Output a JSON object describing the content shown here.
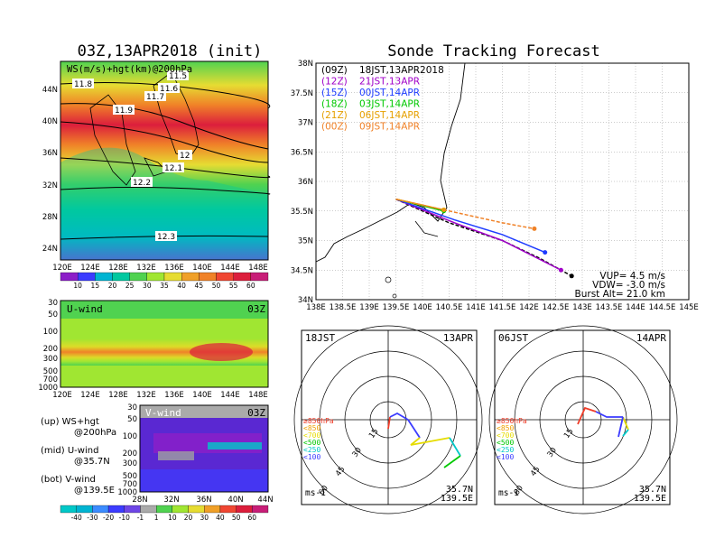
{
  "left_title": "03Z,13APR2018 (init)",
  "right_title": "Sonde Tracking Forecast",
  "map_panel": {
    "label": "WS(m/s)+hgt(km)@200hPa",
    "x_ticks": [
      "120E",
      "124E",
      "128E",
      "132E",
      "136E",
      "140E",
      "144E",
      "148E"
    ],
    "y_ticks": [
      "44N",
      "40N",
      "36N",
      "32N",
      "28N",
      "24N"
    ],
    "height_labels": [
      "11.8",
      "11.5",
      "11.6",
      "11.7",
      "11.9",
      "12",
      "12.1",
      "12.2",
      "12.3"
    ],
    "colorbar_ticks": [
      "10",
      "15",
      "20",
      "25",
      "30",
      "35",
      "40",
      "45",
      "50",
      "55",
      "60"
    ]
  },
  "uwind_panel": {
    "label": "U-wind",
    "time": "03Z",
    "y_ticks": [
      "30",
      "50",
      "100",
      "200",
      "300",
      "500",
      "700",
      "1000"
    ],
    "x_ticks": [
      "120E",
      "124E",
      "128E",
      "132E",
      "136E",
      "140E",
      "144E",
      "148E"
    ]
  },
  "vwind_panel": {
    "label": "V-wind",
    "time": "03Z",
    "y_ticks": [
      "30",
      "50",
      "100",
      "200",
      "300",
      "500",
      "700",
      "1000"
    ],
    "x_ticks": [
      "28N",
      "32N",
      "36N",
      "40N",
      "44N"
    ]
  },
  "legend_text": {
    "up_1": "(up) WS+hgt",
    "up_2": "@200hPa",
    "mid_1": "(mid) U-wind",
    "mid_2": "@35.7N",
    "bot_1": "(bot) V-wind",
    "bot_2": "@139.5E"
  },
  "bottom_colorbar_ticks": [
    "-40",
    "-30",
    "-20",
    "-10",
    "-1",
    "1",
    "10",
    "20",
    "30",
    "40",
    "50",
    "60"
  ],
  "track_panel": {
    "lat_ticks": [
      "38N",
      "37.5N",
      "37N",
      "36.5N",
      "36N",
      "35.5N",
      "35N",
      "34.5N",
      "34N"
    ],
    "lon_ticks": [
      "138E",
      "138.5E",
      "139E",
      "139.5E",
      "140E",
      "140.5E",
      "141E",
      "141.5E",
      "142E",
      "142.5E",
      "143E",
      "143.5E",
      "144E",
      "144.5E",
      "145E"
    ],
    "series_labels": [
      {
        "utc": "(09Z)",
        "jst": "18JST,13APR2018",
        "color": "#000000"
      },
      {
        "utc": "(12Z)",
        "jst": "21JST,13APR",
        "color": "#a000c8"
      },
      {
        "utc": "(15Z)",
        "jst": "00JST,14APR",
        "color": "#1e3cff"
      },
      {
        "utc": "(18Z)",
        "jst": "03JST,14APR",
        "color": "#00c800"
      },
      {
        "utc": "(21Z)",
        "jst": "06JST,14APR",
        "color": "#e6a000"
      },
      {
        "utc": "(00Z)",
        "jst": "09JST,14APR",
        "color": "#f08228"
      }
    ],
    "vup": "VUP= 4.5 m/s",
    "vdw": "VDW= -3.0 m/s",
    "burst": "Burst Alt= 21.0 km"
  },
  "hodo_left": {
    "time": "18JST",
    "date": "13APR",
    "lat": "35.7N",
    "lon": "139.5E",
    "unit": "ms-1"
  },
  "hodo_right": {
    "time": "06JST",
    "date": "14APR",
    "lat": "35.7N",
    "lon": "139.5E",
    "unit": "ms-1"
  },
  "hodo_rings": [
    "15",
    "30",
    "45",
    "60"
  ],
  "hodo_levels": [
    {
      "label": "≥850hPa",
      "color": "#f03c28"
    },
    {
      "label": "<850",
      "color": "#f0a000"
    },
    {
      "label": "<700",
      "color": "#e6dc00"
    },
    {
      "label": "<500",
      "color": "#00c800"
    },
    {
      "label": "<250",
      "color": "#00c8c8"
    },
    {
      "label": "<100",
      "color": "#3c3cff"
    }
  ],
  "chart_data": {
    "type": "line",
    "title": "Sonde Tracking Forecast",
    "xlim": [
      138,
      145
    ],
    "ylim": [
      34,
      38
    ],
    "series": [
      {
        "name": "(09Z) 18JST,13APR2018",
        "color": "#000000",
        "points": [
          [
            139.5,
            35.7
          ],
          [
            140.5,
            35.3
          ],
          [
            141.5,
            35.0
          ],
          [
            142.2,
            34.7
          ],
          [
            142.8,
            34.4
          ]
        ]
      },
      {
        "name": "(12Z) 21JST,13APR",
        "color": "#a000c8",
        "points": [
          [
            139.5,
            35.7
          ],
          [
            140.6,
            35.3
          ],
          [
            141.5,
            35.0
          ],
          [
            142.6,
            34.5
          ]
        ]
      },
      {
        "name": "(15Z) 00JST,14APR",
        "color": "#1e3cff",
        "points": [
          [
            139.5,
            35.7
          ],
          [
            140.6,
            35.35
          ],
          [
            141.5,
            35.1
          ],
          [
            142.3,
            34.8
          ]
        ]
      },
      {
        "name": "(18Z) 03JST,14APR",
        "color": "#00c800",
        "points": [
          [
            139.5,
            35.7
          ],
          [
            140.4,
            35.5
          ]
        ]
      },
      {
        "name": "(21Z) 06JST,14APR",
        "color": "#e6a000",
        "points": [
          [
            139.5,
            35.7
          ],
          [
            140.4,
            35.52
          ]
        ]
      },
      {
        "name": "(00Z) 09JST,14APR",
        "color": "#f08228",
        "points": [
          [
            139.5,
            35.7
          ],
          [
            140.5,
            35.5
          ],
          [
            141.5,
            35.3
          ],
          [
            142.1,
            35.2
          ]
        ]
      }
    ]
  }
}
